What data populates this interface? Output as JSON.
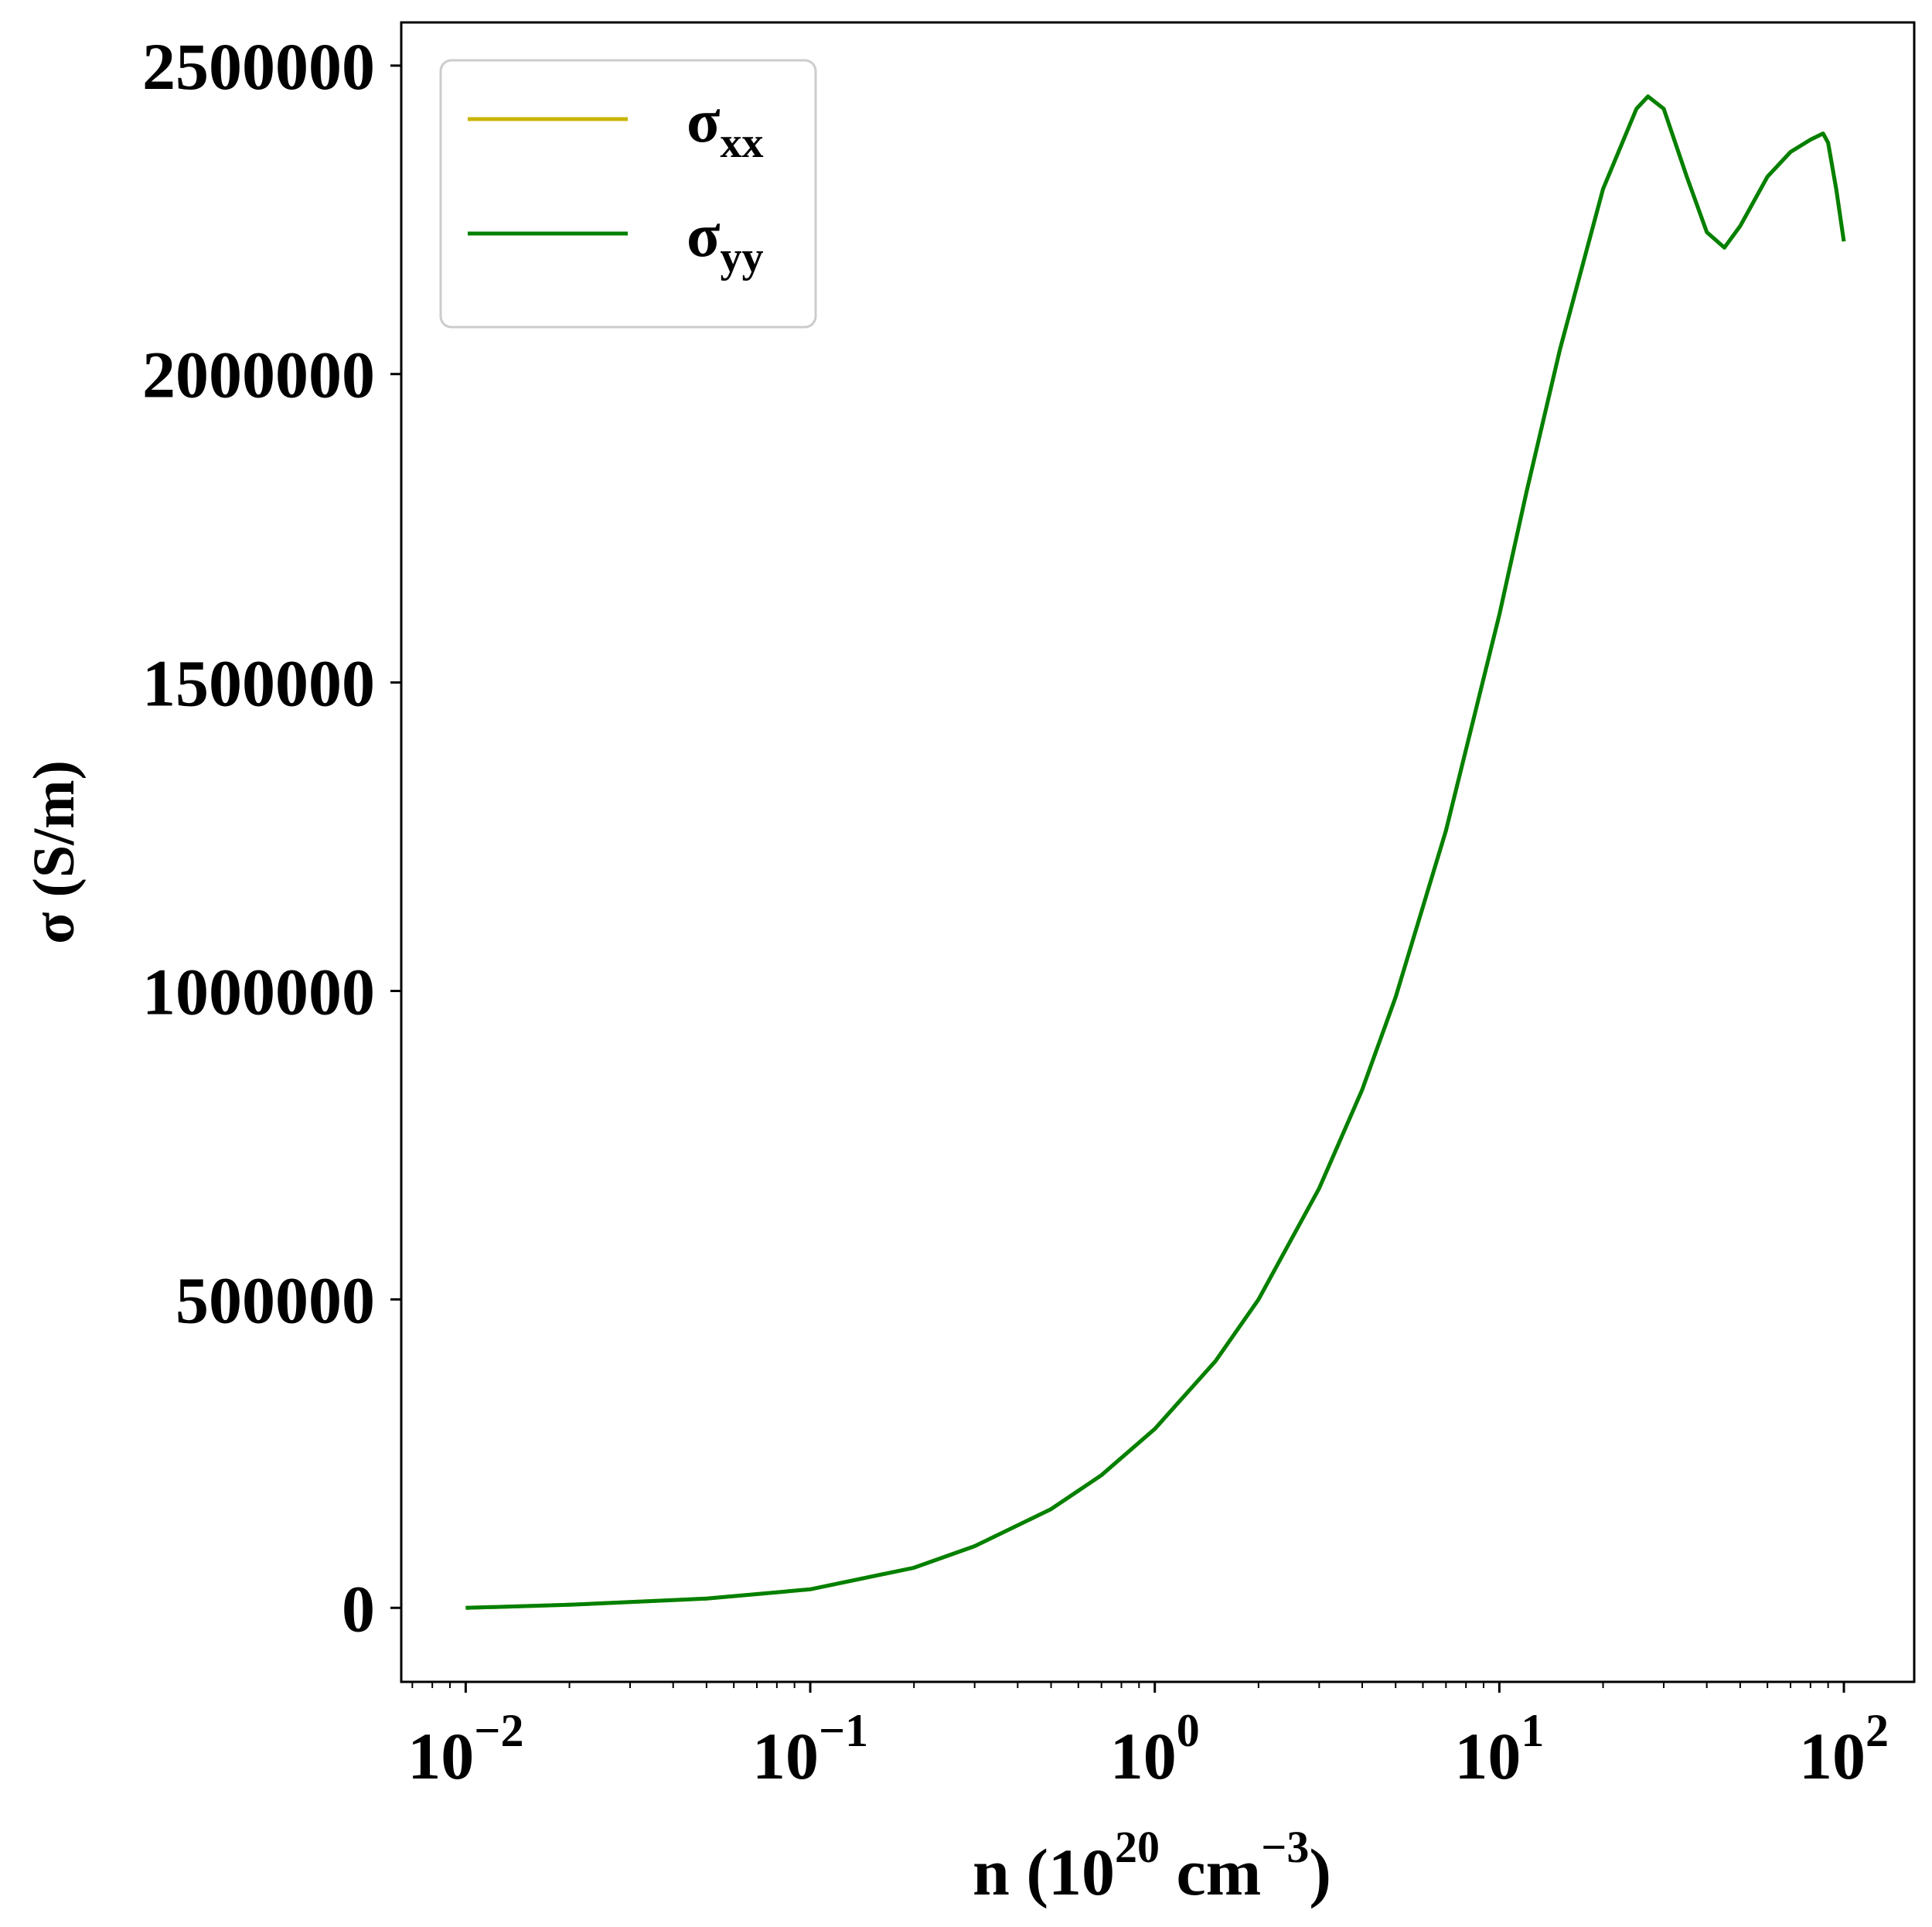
{
  "chart_data": {
    "type": "line",
    "xlabel": {
      "main": "n (10",
      "exp": "20",
      "mid": " cm",
      "unit_exp": "−3",
      "close": ")"
    },
    "ylabel": "σ (S/m)",
    "xscale": "log",
    "xlim": [
      0.0065,
      160
    ],
    "ylim": [
      -120000,
      2570000
    ],
    "grid": false,
    "legend_position": "top-left",
    "x_ticks": [
      {
        "value": 0.01,
        "base": "10",
        "exp": "−2"
      },
      {
        "value": 0.1,
        "base": "10",
        "exp": "−1"
      },
      {
        "value": 1,
        "base": "10",
        "exp": "0"
      },
      {
        "value": 10,
        "base": "10",
        "exp": "1"
      },
      {
        "value": 100,
        "base": "10",
        "exp": "2"
      }
    ],
    "y_ticks": [
      {
        "value": 0,
        "label": "0"
      },
      {
        "value": 500000,
        "label": "500000"
      },
      {
        "value": 1000000,
        "label": "1000000"
      },
      {
        "value": 1500000,
        "label": "1500000"
      },
      {
        "value": 2000000,
        "label": "2000000"
      },
      {
        "value": 2500000,
        "label": "2500000"
      }
    ],
    "series": [
      {
        "name": "σxx",
        "legend": {
          "symbol": "σ",
          "sub": "xx"
        },
        "color": "#c8b400",
        "x": [
          0.01,
          0.02,
          0.05,
          0.1,
          0.2,
          0.3,
          0.5,
          0.7,
          1,
          1.5,
          2,
          3,
          4,
          5,
          7,
          10,
          12,
          15,
          20,
          25,
          27,
          30,
          35,
          40,
          45,
          50,
          60,
          70,
          80,
          87,
          90,
          95,
          100
        ],
        "y": [
          0,
          5000,
          15000,
          30000,
          65000,
          100000,
          160000,
          215000,
          290000,
          400000,
          500000,
          680000,
          840000,
          990000,
          1260000,
          1610000,
          1810000,
          2040000,
          2300000,
          2430000,
          2450000,
          2430000,
          2320000,
          2230000,
          2205000,
          2240000,
          2320000,
          2360000,
          2380000,
          2390000,
          2375000,
          2300000,
          2215000
        ]
      },
      {
        "name": "σyy",
        "legend": {
          "symbol": "σ",
          "sub": "yy"
        },
        "color": "#008000",
        "x": [
          0.01,
          0.02,
          0.05,
          0.1,
          0.2,
          0.3,
          0.5,
          0.7,
          1,
          1.5,
          2,
          3,
          4,
          5,
          7,
          10,
          12,
          15,
          20,
          25,
          27,
          30,
          35,
          40,
          45,
          50,
          60,
          70,
          80,
          87,
          90,
          95,
          100
        ],
        "y": [
          0,
          5000,
          15000,
          30000,
          65000,
          100000,
          160000,
          215000,
          290000,
          400000,
          500000,
          680000,
          840000,
          990000,
          1260000,
          1610000,
          1810000,
          2040000,
          2300000,
          2430000,
          2450000,
          2430000,
          2320000,
          2230000,
          2205000,
          2240000,
          2320000,
          2360000,
          2380000,
          2390000,
          2375000,
          2300000,
          2215000
        ]
      }
    ]
  }
}
